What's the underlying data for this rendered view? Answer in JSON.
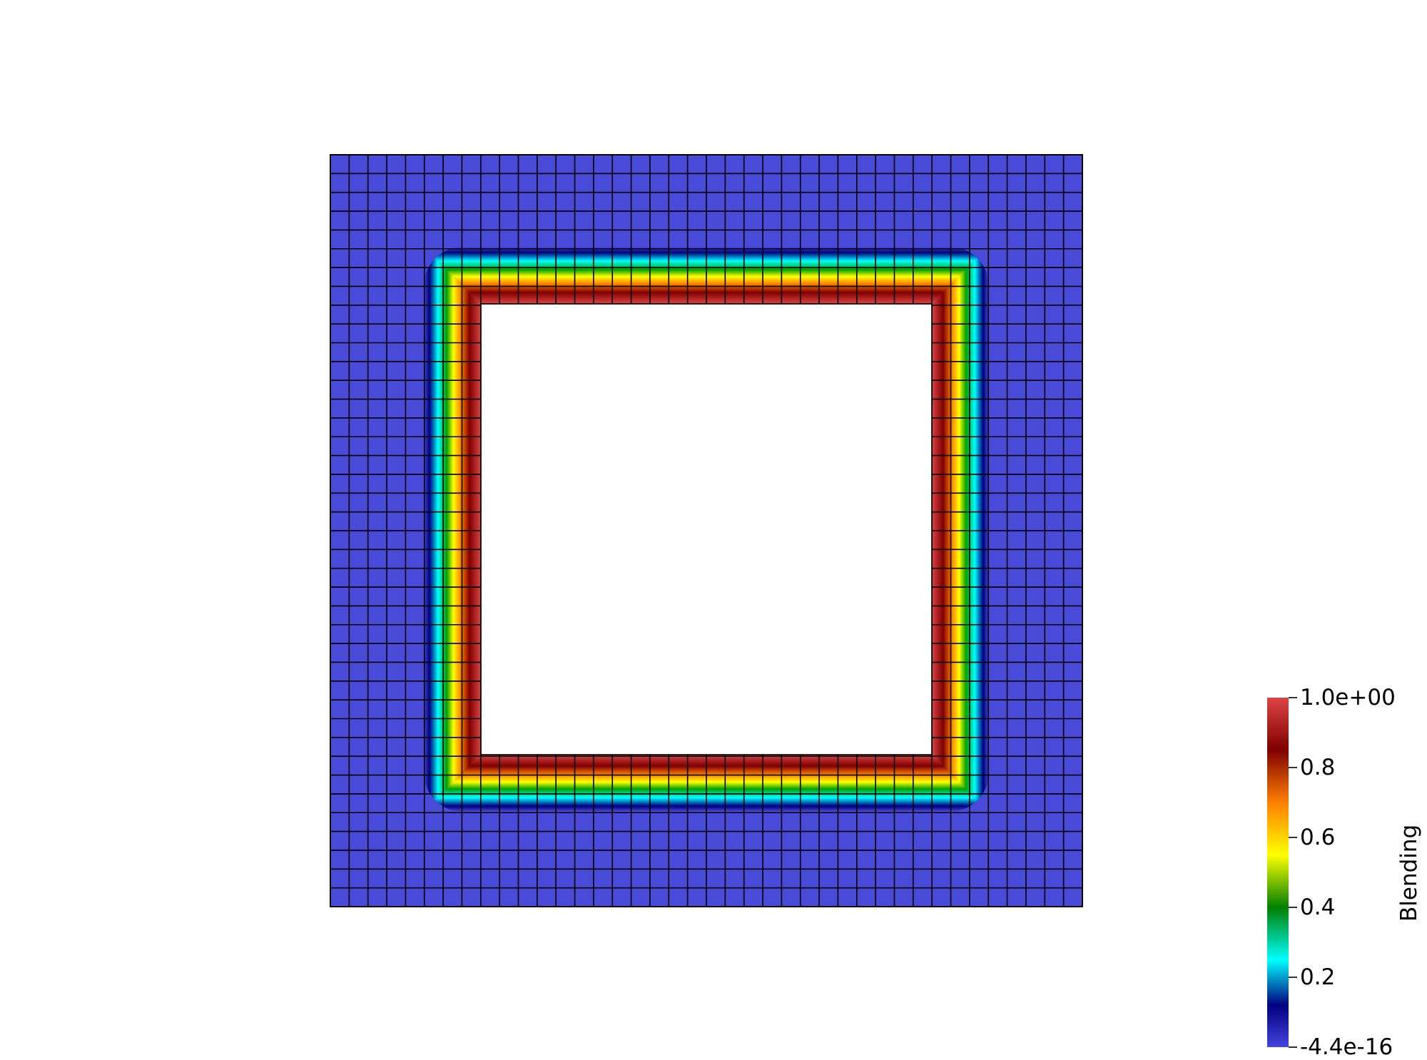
{
  "colorbar": {
    "title": "Blending",
    "labels": [
      "1.0e+00",
      "0.8",
      "0.6",
      "0.4",
      "0.2",
      "-4.4e-16"
    ],
    "range": [
      -4.4e-16,
      1.0
    ],
    "colormap": "rainbow-uniform",
    "colors": [
      "#4444dd",
      "#00007f",
      "#00ffff",
      "#008000",
      "#ffff00",
      "#ff7f00",
      "#7f0000",
      "#dd4444"
    ]
  },
  "mesh": {
    "background_color": "#4a4ad8",
    "grid_line_color": "#000000",
    "cells_per_side": 40,
    "hole_color": "#ffffff"
  }
}
